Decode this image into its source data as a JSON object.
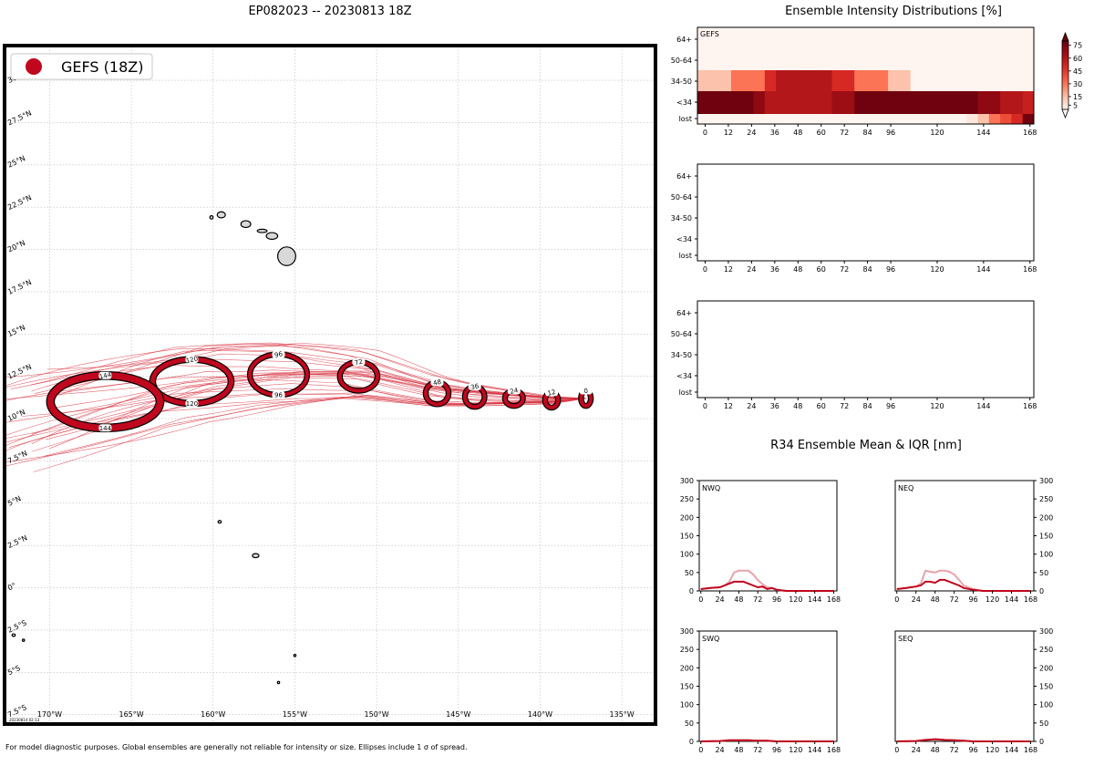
{
  "header": {
    "map_title": "EP082023 -- 20230813 18Z",
    "intensity_title": "Ensemble Intensity Distributions [%]",
    "r34_title": "R34 Ensemble Mean & IQR [nm]",
    "footnote": "For model diagnostic purposes. Global ensembles are generally not reliable for intensity or size. Ellipses include 1 σ of spread.",
    "stamp": "20230814 02:13"
  },
  "colors": {
    "accent": "#c0071e",
    "track": "#d7303f",
    "land": "#d8d8d8"
  },
  "chart_data": [
    {
      "type": "map",
      "name": "track-map",
      "legend": {
        "label": "GEFS (18Z)",
        "placement": "top-left"
      },
      "lon_ticks": [
        "170°W",
        "165°W",
        "160°W",
        "155°W",
        "150°W",
        "145°W",
        "140°W",
        "135°W"
      ],
      "lon_values": [
        -170,
        -165,
        -160,
        -155,
        -150,
        -145,
        -140,
        -135
      ],
      "lat_ticks": [
        "30°N",
        "27.5°N",
        "25°N",
        "22.5°N",
        "20°N",
        "17.5°N",
        "15°N",
        "12.5°N",
        "10°N",
        "7.5°N",
        "5°N",
        "2.5°N",
        "0°",
        "2.5°S",
        "5°S",
        "7.5°S"
      ],
      "lat_values": [
        30,
        27.5,
        25,
        22.5,
        20,
        17.5,
        15,
        12.5,
        10,
        7.5,
        5,
        2.5,
        0,
        -2.5,
        -5,
        -7.5
      ],
      "lon_range": [
        -172.7,
        -133.0
      ],
      "lat_range": [
        -8.0,
        32.0
      ],
      "grid": true,
      "mean_track": [
        {
          "hour": 0,
          "lon": -137.2,
          "lat": 11.2
        },
        {
          "hour": 12,
          "lon": -139.3,
          "lat": 11.1
        },
        {
          "hour": 24,
          "lon": -141.6,
          "lat": 11.2
        },
        {
          "hour": 36,
          "lon": -144.0,
          "lat": 11.3
        },
        {
          "hour": 48,
          "lon": -146.3,
          "lat": 11.5
        },
        {
          "hour": 72,
          "lon": -151.1,
          "lat": 12.5
        },
        {
          "hour": 96,
          "lon": -156.0,
          "lat": 12.6
        },
        {
          "hour": 120,
          "lon": -161.3,
          "lat": 12.2
        },
        {
          "hour": 144,
          "lon": -166.6,
          "lat": 11.0
        }
      ],
      "ellipses": [
        {
          "hour": 0,
          "lon": -137.2,
          "lat": 11.2,
          "rlon": 0.3,
          "rlat": 0.45
        },
        {
          "hour": 12,
          "lon": -139.3,
          "lat": 11.1,
          "rlon": 0.4,
          "rlat": 0.45
        },
        {
          "hour": 24,
          "lon": -141.6,
          "lat": 11.2,
          "rlon": 0.55,
          "rlat": 0.45
        },
        {
          "hour": 36,
          "lon": -144.0,
          "lat": 11.3,
          "rlon": 0.6,
          "rlat": 0.6
        },
        {
          "hour": 48,
          "lon": -146.3,
          "lat": 11.5,
          "rlon": 0.7,
          "rlat": 0.65
        },
        {
          "hour": 72,
          "lon": -151.1,
          "lat": 12.5,
          "rlon": 1.15,
          "rlat": 0.85
        },
        {
          "hour": 96,
          "lon": -156.0,
          "lat": 12.6,
          "rlon": 1.75,
          "rlat": 1.2
        },
        {
          "hour": 120,
          "lon": -161.3,
          "lat": 12.2,
          "rlon": 2.4,
          "rlat": 1.3
        },
        {
          "hour": 144,
          "lon": -166.6,
          "lat": 11.0,
          "rlon": 3.35,
          "rlat": 1.55
        }
      ],
      "islands": [
        {
          "lon": -155.5,
          "lat": 19.6,
          "rlon": 0.55,
          "rlat": 0.55
        },
        {
          "lon": -156.4,
          "lat": 20.8,
          "rlon": 0.35,
          "rlat": 0.2
        },
        {
          "lon": -157.0,
          "lat": 21.1,
          "rlon": 0.3,
          "rlat": 0.1
        },
        {
          "lon": -158.0,
          "lat": 21.5,
          "rlon": 0.3,
          "rlat": 0.2
        },
        {
          "lon": -159.5,
          "lat": 22.05,
          "rlon": 0.25,
          "rlat": 0.18
        },
        {
          "lon": -160.1,
          "lat": 21.9,
          "rlon": 0.1,
          "rlat": 0.1
        },
        {
          "lon": -159.6,
          "lat": 3.9,
          "rlon": 0.1,
          "rlat": 0.08
        },
        {
          "lon": -157.4,
          "lat": 1.9,
          "rlon": 0.2,
          "rlat": 0.12
        },
        {
          "lon": -155.0,
          "lat": -4.0,
          "rlon": 0.06,
          "rlat": 0.06
        },
        {
          "lon": -156.0,
          "lat": -5.6,
          "rlon": 0.06,
          "rlat": 0.06
        },
        {
          "lon": -172.2,
          "lat": -2.8,
          "rlon": 0.1,
          "rlat": 0.08
        },
        {
          "lon": -171.6,
          "lat": -3.1,
          "rlon": 0.05,
          "rlat": 0.05
        }
      ]
    },
    {
      "type": "heatmap",
      "name": "intensity-gefs",
      "label": "GEFS",
      "row_labels": [
        "64+",
        "50-64",
        "34-50",
        "<34",
        "lost"
      ],
      "x_ticks": [
        0,
        12,
        24,
        36,
        48,
        60,
        72,
        84,
        96,
        120,
        144,
        168
      ],
      "x_range": [
        -4,
        170
      ],
      "colorbar": {
        "ticks": [
          5,
          15,
          30,
          45,
          60,
          75
        ],
        "range": [
          0,
          80
        ]
      },
      "cells": [
        [
          0,
          0,
          0,
          0,
          0,
          0,
          0,
          0,
          0,
          0,
          0,
          0,
          0,
          0,
          0,
          0,
          0,
          0,
          0,
          0,
          0,
          0,
          0,
          0,
          0,
          0,
          0,
          0,
          0,
          0
        ],
        [
          0,
          0,
          0,
          0,
          0,
          0,
          0,
          0,
          0,
          0,
          0,
          0,
          0,
          0,
          0,
          0,
          0,
          0,
          0,
          0,
          0,
          0,
          0,
          0,
          0,
          0,
          0,
          0,
          0,
          0
        ],
        [
          14,
          14,
          14,
          30,
          30,
          30,
          50,
          60,
          60,
          60,
          60,
          60,
          50,
          50,
          30,
          30,
          30,
          14,
          14,
          0,
          0,
          0,
          0,
          0,
          0,
          0,
          0,
          0,
          0,
          0
        ],
        [
          78,
          78,
          78,
          78,
          78,
          70,
          60,
          60,
          60,
          60,
          60,
          60,
          66,
          66,
          78,
          78,
          78,
          78,
          78,
          78,
          78,
          78,
          78,
          78,
          78,
          70,
          70,
          60,
          60,
          55
        ],
        [
          0,
          0,
          0,
          0,
          0,
          0,
          0,
          0,
          0,
          0,
          0,
          0,
          0,
          0,
          0,
          0,
          0,
          0,
          0,
          0,
          0,
          0,
          0,
          0,
          4,
          14,
          30,
          40,
          50,
          78
        ]
      ]
    },
    {
      "type": "heatmap",
      "name": "intensity-empty-1",
      "row_labels": [
        "64+",
        "50-64",
        "34-50",
        "<34",
        "lost"
      ],
      "x_ticks": [
        0,
        12,
        24,
        36,
        48,
        60,
        72,
        84,
        96,
        120,
        144,
        168
      ],
      "cells": []
    },
    {
      "type": "heatmap",
      "name": "intensity-empty-2",
      "row_labels": [
        "64+",
        "50-64",
        "34-50",
        "<34",
        "lost"
      ],
      "x_ticks": [
        0,
        12,
        24,
        36,
        48,
        60,
        72,
        84,
        96,
        120,
        144,
        168
      ],
      "cells": []
    },
    {
      "type": "line",
      "name": "r34-nwq",
      "label": "NWQ",
      "x_ticks": [
        0,
        24,
        48,
        72,
        96,
        120,
        144,
        168
      ],
      "y_ticks": [
        0,
        50,
        100,
        150,
        200,
        250,
        300
      ],
      "ylim": [
        0,
        300
      ],
      "xlim": [
        -2,
        172
      ],
      "x": [
        0,
        12,
        24,
        30,
        36,
        42,
        48,
        54,
        60,
        66,
        72,
        78,
        84,
        90,
        96,
        108,
        120,
        144,
        168
      ],
      "mean": [
        5,
        8,
        10,
        15,
        20,
        25,
        25,
        25,
        20,
        15,
        10,
        12,
        5,
        8,
        3,
        0,
        0,
        0,
        0
      ],
      "iqr_high": [
        5,
        8,
        10,
        15,
        25,
        50,
        55,
        55,
        55,
        45,
        30,
        18,
        10,
        8,
        3,
        0,
        0,
        0,
        0
      ]
    },
    {
      "type": "line",
      "name": "r34-neq",
      "label": "NEQ",
      "x_ticks": [
        0,
        24,
        48,
        72,
        96,
        120,
        144,
        168
      ],
      "y_ticks": [
        0,
        50,
        100,
        150,
        200,
        250,
        300
      ],
      "ylim": [
        0,
        300
      ],
      "xlim": [
        -2,
        172
      ],
      "x": [
        0,
        12,
        24,
        30,
        36,
        42,
        48,
        54,
        60,
        66,
        72,
        78,
        84,
        96,
        108,
        120,
        144,
        168
      ],
      "mean": [
        5,
        8,
        12,
        15,
        25,
        25,
        22,
        30,
        30,
        25,
        20,
        15,
        8,
        3,
        0,
        0,
        0,
        0
      ],
      "iqr_high": [
        5,
        8,
        12,
        20,
        55,
        52,
        50,
        55,
        55,
        52,
        45,
        30,
        15,
        5,
        0,
        0,
        0,
        0
      ]
    },
    {
      "type": "line",
      "name": "r34-swq",
      "label": "SWQ",
      "x_ticks": [
        0,
        24,
        48,
        72,
        96,
        120,
        144,
        168
      ],
      "y_ticks": [
        0,
        50,
        100,
        150,
        200,
        250,
        300
      ],
      "ylim": [
        0,
        300
      ],
      "xlim": [
        -2,
        172
      ],
      "x": [
        0,
        24,
        36,
        48,
        60,
        72,
        84,
        96,
        120,
        168
      ],
      "mean": [
        0,
        1,
        3,
        3,
        3,
        2,
        2,
        0,
        0,
        0
      ],
      "iqr_high": [
        0,
        1,
        3,
        3,
        3,
        2,
        2,
        0,
        0,
        0
      ]
    },
    {
      "type": "line",
      "name": "r34-seq",
      "label": "SEQ",
      "x_ticks": [
        0,
        24,
        48,
        72,
        96,
        120,
        144,
        168
      ],
      "y_ticks": [
        0,
        50,
        100,
        150,
        200,
        250,
        300
      ],
      "ylim": [
        0,
        300
      ],
      "xlim": [
        -2,
        172
      ],
      "x": [
        0,
        24,
        36,
        48,
        60,
        72,
        84,
        96,
        120,
        168
      ],
      "mean": [
        0,
        1,
        4,
        6,
        4,
        3,
        2,
        0,
        0,
        0
      ],
      "iqr_high": [
        0,
        1,
        4,
        6,
        4,
        3,
        2,
        0,
        0,
        0
      ]
    }
  ]
}
